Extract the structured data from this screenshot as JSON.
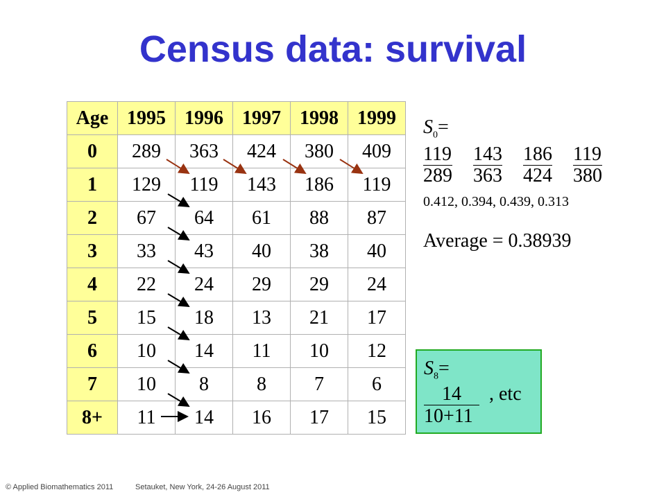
{
  "title": "Census data: survival",
  "table": {
    "headers": [
      "Age",
      "1995",
      "1996",
      "1997",
      "1998",
      "1999"
    ],
    "rows": [
      [
        "0",
        "289",
        "363",
        "424",
        "380",
        "409"
      ],
      [
        "1",
        "129",
        "119",
        "143",
        "186",
        "119"
      ],
      [
        "2",
        "67",
        "64",
        "61",
        "88",
        "87"
      ],
      [
        "3",
        "33",
        "43",
        "40",
        "38",
        "40"
      ],
      [
        "4",
        "22",
        "24",
        "29",
        "29",
        "24"
      ],
      [
        "5",
        "15",
        "18",
        "13",
        "21",
        "17"
      ],
      [
        "6",
        "10",
        "14",
        "11",
        "10",
        "12"
      ],
      [
        "7",
        "10",
        "8",
        "8",
        "7",
        "6"
      ],
      [
        "8+",
        "11",
        "14",
        "16",
        "17",
        "15"
      ]
    ]
  },
  "s0": {
    "label": "S",
    "sub": "0",
    "eq": "=",
    "fractions": [
      {
        "num": "119",
        "den": "289"
      },
      {
        "num": "143",
        "den": "363"
      },
      {
        "num": "186",
        "den": "424"
      },
      {
        "num": "119",
        "den": "380"
      }
    ],
    "ratios": "0.412,  0.394,  0.439,  0.313",
    "average": "Average = 0.38939"
  },
  "s8": {
    "label": "S",
    "sub": "8",
    "eq": "=",
    "num": "14",
    "den": "10+11",
    "etc": ", etc"
  },
  "colors": {
    "title": "#3333cc",
    "header_bg": "#ffff99",
    "box_bg": "#7fe5c8",
    "box_border": "#22aa22",
    "arrow_brown": "#993311",
    "arrow_black": "#000000"
  },
  "footer": {
    "left": "© Applied Biomathematics 2011",
    "right": "Setauket, New York, 24-26 August 2011"
  }
}
